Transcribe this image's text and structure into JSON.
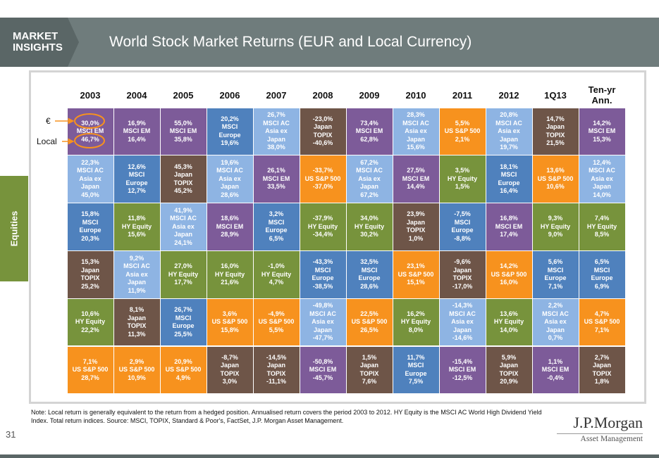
{
  "header": {
    "badge": [
      "MARKET",
      "INSIGHTS"
    ],
    "title": "World Stock Market Returns (EUR and Local Currency)"
  },
  "side_label": "Equities",
  "row_labels": [
    "€",
    "Local"
  ],
  "table": {
    "columns": [
      {
        "header": "2003",
        "cells": [
          {
            "lines": [
              "30,0%",
              "MSCI EM",
              "46,7%"
            ],
            "color": "#7d5b99"
          },
          {
            "lines": [
              "22,3%",
              "MSCI AC",
              "Asia ex",
              "Japan",
              "45,0%"
            ],
            "color": "#8eb4e3"
          },
          {
            "lines": [
              "15,8%",
              "MSCI",
              "Europe",
              "20,3%"
            ],
            "color": "#4f81bd"
          },
          {
            "lines": [
              "15,3%",
              "Japan",
              "TOPIX",
              "25,2%"
            ],
            "color": "#6e5548"
          },
          {
            "lines": [
              "10,6%",
              "HY Equity",
              "22,2%"
            ],
            "color": "#77933c"
          },
          {
            "lines": [
              "7,1%",
              "US S&P 500",
              "28,7%"
            ],
            "color": "#f7921e"
          }
        ]
      },
      {
        "header": "2004",
        "cells": [
          {
            "lines": [
              "16,9%",
              "MSCI EM",
              "16,4%"
            ],
            "color": "#7d5b99"
          },
          {
            "lines": [
              "12,6%",
              "MSCI",
              "Europe",
              "12,7%"
            ],
            "color": "#4f81bd"
          },
          {
            "lines": [
              "11,8%",
              "HY Equity",
              "15,6%"
            ],
            "color": "#77933c"
          },
          {
            "lines": [
              "9,2%",
              "MSCI AC",
              "Asia ex",
              "Japan",
              "11,9%"
            ],
            "color": "#8eb4e3"
          },
          {
            "lines": [
              "8,1%",
              "Japan",
              "TOPIX",
              "11,3%"
            ],
            "color": "#6e5548"
          },
          {
            "lines": [
              "2,9%",
              "US S&P 500",
              "10,9%"
            ],
            "color": "#f7921e"
          }
        ]
      },
      {
        "header": "2005",
        "cells": [
          {
            "lines": [
              "55,0%",
              "MSCI EM",
              "35,8%"
            ],
            "color": "#7d5b99"
          },
          {
            "lines": [
              "45,3%",
              "Japan",
              "TOPIX",
              "45,2%"
            ],
            "color": "#6e5548"
          },
          {
            "lines": [
              "41,9%",
              "MSCI AC",
              "Asia ex",
              "Japan",
              "24,1%"
            ],
            "color": "#8eb4e3"
          },
          {
            "lines": [
              "27,0%",
              "HY Equity",
              "17,7%"
            ],
            "color": "#77933c"
          },
          {
            "lines": [
              "26,7%",
              "MSCI",
              "Europe",
              "25,5%"
            ],
            "color": "#4f81bd"
          },
          {
            "lines": [
              "20,9%",
              "US S&P 500",
              "4,9%"
            ],
            "color": "#f7921e"
          }
        ]
      },
      {
        "header": "2006",
        "cells": [
          {
            "lines": [
              "20,2%",
              "MSCI",
              "Europe",
              "19,6%"
            ],
            "color": "#4f81bd"
          },
          {
            "lines": [
              "19,6%",
              "MSCI AC",
              "Asia ex",
              "Japan",
              "28,6%"
            ],
            "color": "#8eb4e3"
          },
          {
            "lines": [
              "18,6%",
              "MSCI EM",
              "28,9%"
            ],
            "color": "#7d5b99"
          },
          {
            "lines": [
              "16,0%",
              "HY Equity",
              "21,6%"
            ],
            "color": "#77933c"
          },
          {
            "lines": [
              "3,6%",
              "US S&P 500",
              "15,8%"
            ],
            "color": "#f7921e"
          },
          {
            "lines": [
              "-8,7%",
              "Japan",
              "TOPIX",
              "3,0%"
            ],
            "color": "#6e5548"
          }
        ]
      },
      {
        "header": "2007",
        "cells": [
          {
            "lines": [
              "26,7%",
              "MSCI AC",
              "Asia ex",
              "Japan",
              "38,0%"
            ],
            "color": "#8eb4e3"
          },
          {
            "lines": [
              "26,1%",
              "MSCI EM",
              "33,5%"
            ],
            "color": "#7d5b99"
          },
          {
            "lines": [
              "3,2%",
              "MSCI",
              "Europe",
              "6,5%"
            ],
            "color": "#4f81bd"
          },
          {
            "lines": [
              "-1,0%",
              "HY Equity",
              "4,7%"
            ],
            "color": "#77933c"
          },
          {
            "lines": [
              "-4,9%",
              "US S&P 500",
              "5,5%"
            ],
            "color": "#f7921e"
          },
          {
            "lines": [
              "-14,5%",
              "Japan",
              "TOPIX",
              "-11,1%"
            ],
            "color": "#6e5548"
          }
        ]
      },
      {
        "header": "2008",
        "cells": [
          {
            "lines": [
              "-23,0%",
              "Japan",
              "TOPIX",
              "-40,6%"
            ],
            "color": "#6e5548"
          },
          {
            "lines": [
              "-33,7%",
              "US S&P 500",
              "-37,0%"
            ],
            "color": "#f7921e"
          },
          {
            "lines": [
              "-37,9%",
              "HY Equity",
              "-34,4%"
            ],
            "color": "#77933c"
          },
          {
            "lines": [
              "-43,3%",
              "MSCI",
              "Europe",
              "-38,5%"
            ],
            "color": "#4f81bd"
          },
          {
            "lines": [
              "-49,8%",
              "MSCI AC",
              "Asia ex",
              "Japan",
              "-47,7%"
            ],
            "color": "#8eb4e3"
          },
          {
            "lines": [
              "-50,8%",
              "MSCI EM",
              "-45,7%"
            ],
            "color": "#7d5b99"
          }
        ]
      },
      {
        "header": "2009",
        "cells": [
          {
            "lines": [
              "73,4%",
              "MSCI EM",
              "62,8%"
            ],
            "color": "#7d5b99"
          },
          {
            "lines": [
              "67,2%",
              "MSCI AC",
              "Asia ex",
              "Japan",
              "67,2%"
            ],
            "color": "#8eb4e3"
          },
          {
            "lines": [
              "34,0%",
              "HY Equity",
              "30,2%"
            ],
            "color": "#77933c"
          },
          {
            "lines": [
              "32,5%",
              "MSCI",
              "Europe",
              "28,6%"
            ],
            "color": "#4f81bd"
          },
          {
            "lines": [
              "22,5%",
              "US S&P 500",
              "26,5%"
            ],
            "color": "#f7921e"
          },
          {
            "lines": [
              "1,5%",
              "Japan",
              "TOPIX",
              "7,6%"
            ],
            "color": "#6e5548"
          }
        ]
      },
      {
        "header": "2010",
        "cells": [
          {
            "lines": [
              "28,3%",
              "MSCI AC",
              "Asia ex",
              "Japan",
              "15,6%"
            ],
            "color": "#8eb4e3"
          },
          {
            "lines": [
              "27,5%",
              "MSCI EM",
              "14,4%"
            ],
            "color": "#7d5b99"
          },
          {
            "lines": [
              "23,9%",
              "Japan",
              "TOPIX",
              "1,0%"
            ],
            "color": "#6e5548"
          },
          {
            "lines": [
              "23,1%",
              "US S&P 500",
              "15,1%"
            ],
            "color": "#f7921e"
          },
          {
            "lines": [
              "16,2%",
              "HY Equity",
              "8,0%"
            ],
            "color": "#77933c"
          },
          {
            "lines": [
              "11,7%",
              "MSCI",
              "Europe",
              "7,5%"
            ],
            "color": "#4f81bd"
          }
        ]
      },
      {
        "header": "2011",
        "cells": [
          {
            "lines": [
              "5,5%",
              "US S&P 500",
              "2,1%"
            ],
            "color": "#f7921e"
          },
          {
            "lines": [
              "3,5%",
              "HY Equity",
              "1,5%"
            ],
            "color": "#77933c"
          },
          {
            "lines": [
              "-7,5%",
              "MSCI",
              "Europe",
              "-8,8%"
            ],
            "color": "#4f81bd"
          },
          {
            "lines": [
              "-9,6%",
              "Japan",
              "TOPIX",
              "-17,0%"
            ],
            "color": "#6e5548"
          },
          {
            "lines": [
              "-14,3%",
              "MSCI AC",
              "Asia ex",
              "Japan",
              "-14,6%"
            ],
            "color": "#8eb4e3"
          },
          {
            "lines": [
              "-15,4%",
              "MSCI EM",
              "-12,5%"
            ],
            "color": "#7d5b99"
          }
        ]
      },
      {
        "header": "2012",
        "cells": [
          {
            "lines": [
              "20,8%",
              "MSCI AC",
              "Asia ex",
              "Japan",
              "19,7%"
            ],
            "color": "#8eb4e3"
          },
          {
            "lines": [
              "18,1%",
              "MSCI",
              "Europe",
              "16,4%"
            ],
            "color": "#4f81bd"
          },
          {
            "lines": [
              "16,8%",
              "MSCI EM",
              "17,4%"
            ],
            "color": "#7d5b99"
          },
          {
            "lines": [
              "14,2%",
              "US S&P 500",
              "16,0%"
            ],
            "color": "#f7921e"
          },
          {
            "lines": [
              "13,6%",
              "HY Equity",
              "14,0%"
            ],
            "color": "#77933c"
          },
          {
            "lines": [
              "5,9%",
              "Japan",
              "TOPIX",
              "20,9%"
            ],
            "color": "#6e5548"
          }
        ]
      },
      {
        "header": "1Q13",
        "cells": [
          {
            "lines": [
              "14,7%",
              "Japan",
              "TOPIX",
              "21,5%"
            ],
            "color": "#6e5548"
          },
          {
            "lines": [
              "13,6%",
              "US S&P 500",
              "10,6%"
            ],
            "color": "#f7921e"
          },
          {
            "lines": [
              "9,3%",
              "HY Equity",
              "9,0%"
            ],
            "color": "#77933c"
          },
          {
            "lines": [
              "5,6%",
              "MSCI",
              "Europe",
              "7,1%"
            ],
            "color": "#4f81bd"
          },
          {
            "lines": [
              "2,2%",
              "MSCI AC",
              "Asia ex",
              "Japan",
              "0,7%"
            ],
            "color": "#8eb4e3"
          },
          {
            "lines": [
              "1,1%",
              "MSCI EM",
              "-0,4%"
            ],
            "color": "#7d5b99"
          }
        ]
      },
      {
        "header": "Ten-yr Ann.",
        "cells": [
          {
            "lines": [
              "14,2%",
              "MSCI EM",
              "15,3%"
            ],
            "color": "#7d5b99"
          },
          {
            "lines": [
              "12,4%",
              "MSCI AC",
              "Asia ex",
              "Japan",
              "14,0%"
            ],
            "color": "#8eb4e3"
          },
          {
            "lines": [
              "7,4%",
              "HY Equity",
              "8,5%"
            ],
            "color": "#77933c"
          },
          {
            "lines": [
              "6,5%",
              "MSCI",
              "Europe",
              "6,9%"
            ],
            "color": "#4f81bd"
          },
          {
            "lines": [
              "4,7%",
              "US S&P 500",
              "7,1%"
            ],
            "color": "#f7921e"
          },
          {
            "lines": [
              "2,7%",
              "Japan",
              "TOPIX",
              "1,8%"
            ],
            "color": "#6e5548"
          }
        ]
      }
    ]
  },
  "footnote": "Note: Local return is generally equivalent to the return from a hedged position. Annualised return covers the period 2003 to 2012. HY Equity is the MSCI AC World High Dividend Yield Index. Total return indices. Source: MSCI, TOPIX, Standard & Poor's, FactSet, J.P. Morgan Asset Management.",
  "page_number": "31",
  "logo": {
    "name": "J.P.Morgan",
    "subtitle": "Asset Management"
  }
}
